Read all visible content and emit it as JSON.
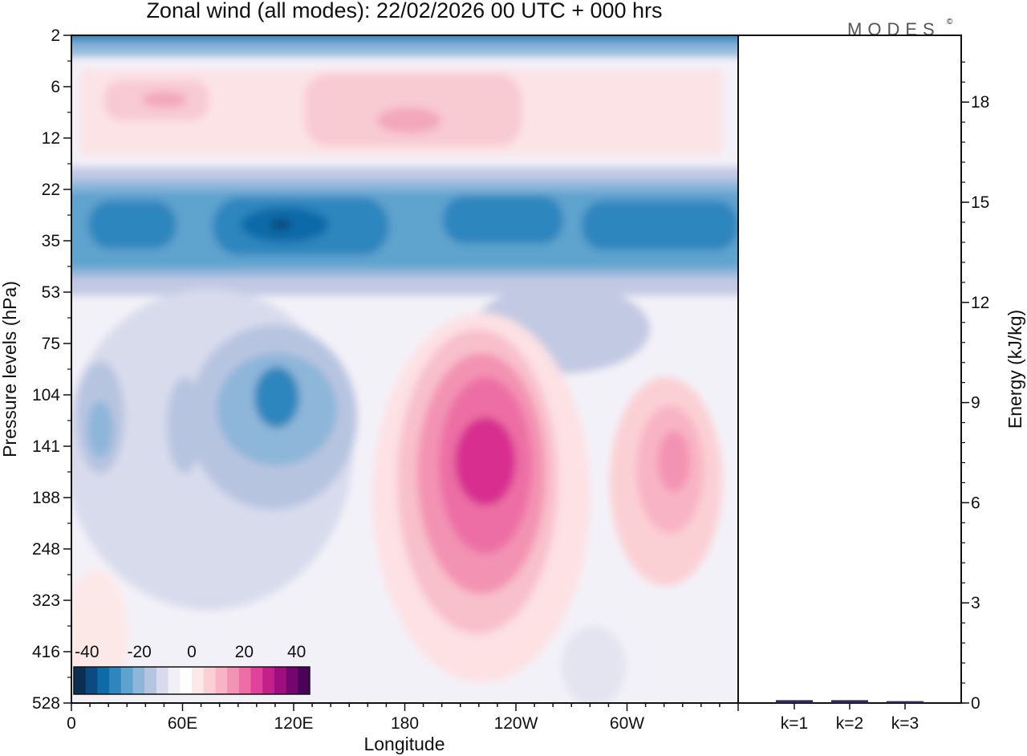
{
  "title": "Zonal wind (all modes):  22/02/2026  00 UTC  + 000 hrs",
  "logo": {
    "text": "MODES",
    "mark": "©"
  },
  "chart_data": [
    {
      "type": "heatmap",
      "title": "Zonal wind (all modes):  22/02/2026  00 UTC  + 000 hrs",
      "xlabel": "Longitude",
      "ylabel": "Pressure levels (hPa)",
      "x_ticks": [
        "0",
        "60E",
        "120E",
        "180",
        "120W",
        "60W"
      ],
      "x_tick_values": [
        0,
        60,
        120,
        180,
        240,
        300
      ],
      "xlim": [
        0,
        360
      ],
      "y_ticks": [
        "2",
        "6",
        "12",
        "22",
        "35",
        "53",
        "75",
        "104",
        "141",
        "188",
        "248",
        "323",
        "416",
        "528"
      ],
      "colorbar": {
        "tick_labels": [
          "-40",
          "-20",
          "0",
          "20",
          "40"
        ],
        "tick_values": [
          -40,
          -20,
          0,
          20,
          40
        ],
        "range": [
          -45,
          45
        ],
        "colors": [
          "#0b2f52",
          "#0c4a80",
          "#0f6aa8",
          "#2f86be",
          "#5ea3cf",
          "#8db6d9",
          "#b7c4e0",
          "#d8dbec",
          "#f1f0f7",
          "#ffffff",
          "#fde8e8",
          "#fbd0d4",
          "#f8b4c4",
          "#f393b3",
          "#ec6ea4",
          "#e0439a",
          "#c4208c",
          "#9e0e7e",
          "#76066f",
          "#4a035a"
        ]
      },
      "features": [
        {
          "name": "upper easterly band",
          "lon_range": [
            0,
            360
          ],
          "level_range": [
            22,
            53
          ],
          "approx_min": -40
        },
        {
          "name": "stratospheric westerly band",
          "lon_range": [
            15,
            250
          ],
          "level_range": [
            6,
            12
          ],
          "approx_max": 15
        },
        {
          "name": "westerly jet core",
          "lon_center": 218,
          "level_center": 141,
          "approx_max": 30
        },
        {
          "name": "secondary westerly maximum",
          "lon_center": 320,
          "level_center": 141,
          "approx_max": 20
        },
        {
          "name": "easterly pocket",
          "lon_center": 112,
          "level_center": 104,
          "approx_min": -20
        }
      ]
    },
    {
      "type": "bar",
      "ylabel": "Energy (kJ/kg)",
      "categories": [
        "k=1",
        "k=2",
        "k=3"
      ],
      "values": [
        0.05,
        0.05,
        0.02
      ],
      "ylim": [
        0,
        20
      ],
      "y_ticks": [
        0,
        3,
        6,
        9,
        12,
        15,
        18
      ]
    }
  ]
}
